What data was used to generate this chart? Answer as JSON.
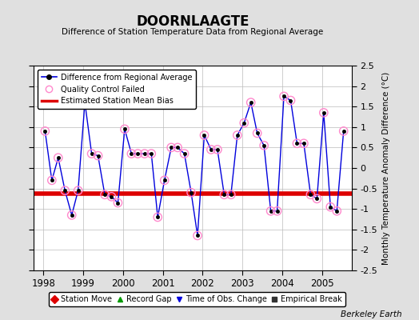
{
  "title": "DOORNLAAGTE",
  "subtitle": "Difference of Station Temperature Data from Regional Average",
  "ylabel": "Monthly Temperature Anomaly Difference (°C)",
  "bias": -0.62,
  "xlim": [
    1997.75,
    2005.75
  ],
  "ylim": [
    -2.5,
    2.5
  ],
  "yticks": [
    -2.5,
    -2,
    -1.5,
    -1,
    -0.5,
    0,
    0.5,
    1,
    1.5,
    2,
    2.5
  ],
  "xticks": [
    1998,
    1999,
    2000,
    2001,
    2002,
    2003,
    2004,
    2005
  ],
  "background_color": "#e0e0e0",
  "plot_bg_color": "#ffffff",
  "line_color": "#0000dd",
  "bias_color": "#dd0000",
  "qc_color": "#ff88cc",
  "time_data": [
    1998.04,
    1998.21,
    1998.37,
    1998.54,
    1998.71,
    1998.87,
    1999.04,
    1999.21,
    1999.37,
    1999.54,
    1999.71,
    1999.87,
    2000.04,
    2000.21,
    2000.37,
    2000.54,
    2000.71,
    2000.87,
    2001.04,
    2001.21,
    2001.37,
    2001.54,
    2001.71,
    2001.87,
    2002.04,
    2002.21,
    2002.37,
    2002.54,
    2002.71,
    2002.87,
    2003.04,
    2003.21,
    2003.37,
    2003.54,
    2003.71,
    2003.87,
    2004.04,
    2004.21,
    2004.37,
    2004.54,
    2004.71,
    2004.87,
    2005.04,
    2005.21,
    2005.37,
    2005.54
  ],
  "diff_data": [
    0.9,
    -0.3,
    0.25,
    -0.55,
    -1.15,
    -0.55,
    1.6,
    0.35,
    0.3,
    -0.65,
    -0.7,
    -0.85,
    0.95,
    0.35,
    0.35,
    0.35,
    0.35,
    -1.2,
    -0.3,
    0.5,
    0.5,
    0.35,
    -0.6,
    -1.65,
    0.8,
    0.45,
    0.45,
    -0.65,
    -0.65,
    0.8,
    1.1,
    1.6,
    0.85,
    0.55,
    -1.05,
    -1.05,
    1.75,
    1.65,
    0.6,
    0.6,
    -0.65,
    -0.75,
    1.35,
    -0.95,
    -1.05,
    0.9
  ],
  "qc_all": true,
  "berkeley_earth_text": "Berkeley Earth"
}
